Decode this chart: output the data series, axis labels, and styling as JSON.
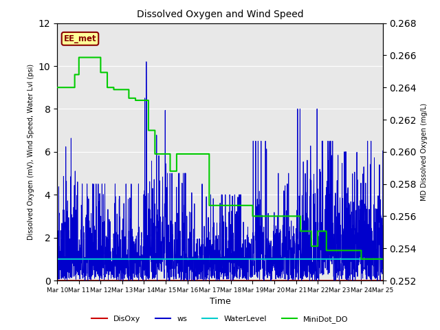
{
  "title": "Dissolved Oxygen and Wind Speed",
  "xlabel": "Time",
  "ylabel_left": "Dissolved Oxygen (mV), Wind Speed, Water Lvl (psi)",
  "ylabel_right": "MD Dissolved Oxygen (mg/L)",
  "annotation": "EE_met",
  "ylim_left": [
    0,
    12
  ],
  "ylim_right": [
    0.252,
    0.268
  ],
  "yticks_left": [
    0,
    2,
    4,
    6,
    8,
    10,
    12
  ],
  "yticks_right": [
    0.252,
    0.254,
    0.256,
    0.258,
    0.26,
    0.262,
    0.264,
    0.266,
    0.268
  ],
  "xtick_labels": [
    "Mar 10",
    "Mar 11",
    "Mar 12",
    "Mar 13",
    "Mar 14",
    "Mar 15",
    "Mar 16",
    "Mar 17",
    "Mar 18",
    "Mar 19",
    "Mar 20",
    "Mar 21",
    "Mar 22",
    "Mar 23",
    "Mar 24",
    "Mar 25"
  ],
  "xtick_positions": [
    0,
    1,
    2,
    3,
    4,
    5,
    6,
    7,
    8,
    9,
    10,
    11,
    12,
    13,
    14,
    15
  ],
  "colors": {
    "DisOxy": "#cc0000",
    "ws": "#0000cc",
    "WaterLevel": "#00cccc",
    "MiniDot_DO": "#00cc00",
    "background": "#e8e8e8",
    "annotation_bg": "#ffff99",
    "annotation_border": "#880000"
  },
  "minidot_steps": {
    "t": [
      0.0,
      0.8,
      1.0,
      1.3,
      1.5,
      1.7,
      2.0,
      2.3,
      2.6,
      3.0,
      3.3,
      3.6,
      3.9,
      4.0,
      4.2,
      4.5,
      4.8,
      5.0,
      5.2,
      5.5,
      6.0,
      7.0,
      8.0,
      8.5,
      9.0,
      9.5,
      10.0,
      10.5,
      11.0,
      11.2,
      11.5,
      11.7,
      12.0,
      12.2,
      12.4,
      12.6,
      13.0,
      13.5,
      14.0,
      14.5,
      15.0
    ],
    "v": [
      9.0,
      9.6,
      10.4,
      10.4,
      10.4,
      10.4,
      9.7,
      9.0,
      8.9,
      8.9,
      8.5,
      8.4,
      8.4,
      8.4,
      7.0,
      5.9,
      5.9,
      5.9,
      5.1,
      5.9,
      5.9,
      3.5,
      3.5,
      3.5,
      3.0,
      3.0,
      3.0,
      3.0,
      3.0,
      2.3,
      2.3,
      1.6,
      2.3,
      2.3,
      1.4,
      1.4,
      1.4,
      1.4,
      1.0,
      1.0,
      1.0
    ]
  }
}
